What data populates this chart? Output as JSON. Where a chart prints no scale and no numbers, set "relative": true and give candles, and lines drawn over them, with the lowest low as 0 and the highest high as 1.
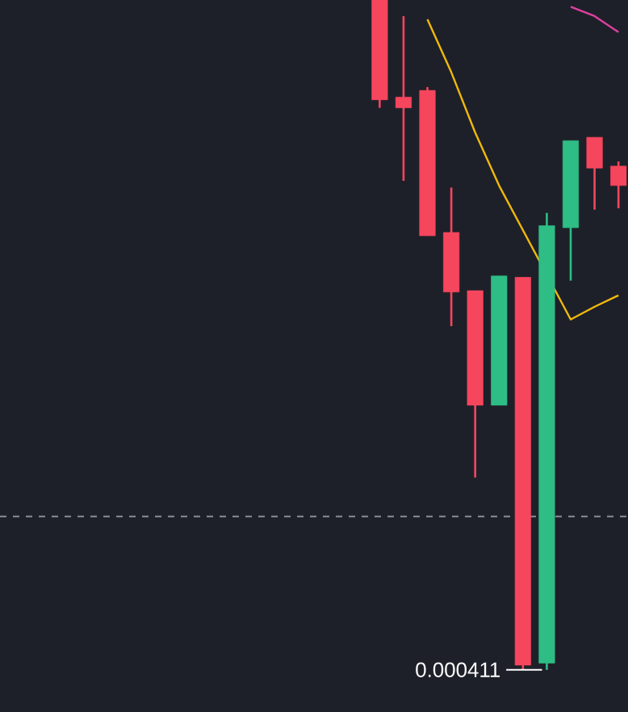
{
  "chart_data": {
    "type": "candlestick",
    "relative": true,
    "categories": [
      null,
      null,
      null,
      null,
      null,
      null,
      null,
      null,
      null,
      null,
      null
    ],
    "ohlc": [
      [
        1.0,
        1.0,
        0.839,
        0.851
      ],
      [
        0.855,
        0.976,
        0.73,
        0.839
      ],
      [
        0.865,
        0.87,
        0.648,
        0.648
      ],
      [
        0.653,
        0.72,
        0.513,
        0.564
      ],
      [
        0.566,
        0.566,
        0.287,
        0.395
      ],
      [
        0.395,
        0.588,
        0.395,
        0.588
      ],
      [
        0.586,
        0.586,
        0.0,
        0.007
      ],
      [
        0.01,
        0.682,
        0.0,
        0.663
      ],
      [
        0.66,
        0.79,
        0.581,
        0.79
      ],
      [
        0.795,
        0.795,
        0.687,
        0.749
      ],
      [
        0.752,
        0.759,
        0.689,
        0.723
      ]
    ],
    "colors": [
      "#f6465d",
      "#f6465d",
      "#f6465d",
      "#f6465d",
      "#f6465d",
      "#2ebd85",
      "#f6465d",
      "#2ebd85",
      "#2ebd85",
      "#f6465d",
      "#f6465d"
    ],
    "series": [
      {
        "type": "line",
        "color": "#f0b90b",
        "values": [
          null,
          null,
          0.971,
          0.892,
          0.802,
          0.723,
          null,
          null,
          0.523,
          0.542,
          0.559
        ]
      },
      {
        "type": "line",
        "color": "#e040a0",
        "values": [
          null,
          null,
          null,
          null,
          null,
          null,
          null,
          null,
          0.99,
          0.976,
          0.952
        ]
      }
    ],
    "ref_lines": [
      {
        "axis": "y",
        "value": 0.229,
        "color": "#8a8d93",
        "line_style": "dashed"
      }
    ],
    "annotations": [
      "0.000411"
    ]
  }
}
